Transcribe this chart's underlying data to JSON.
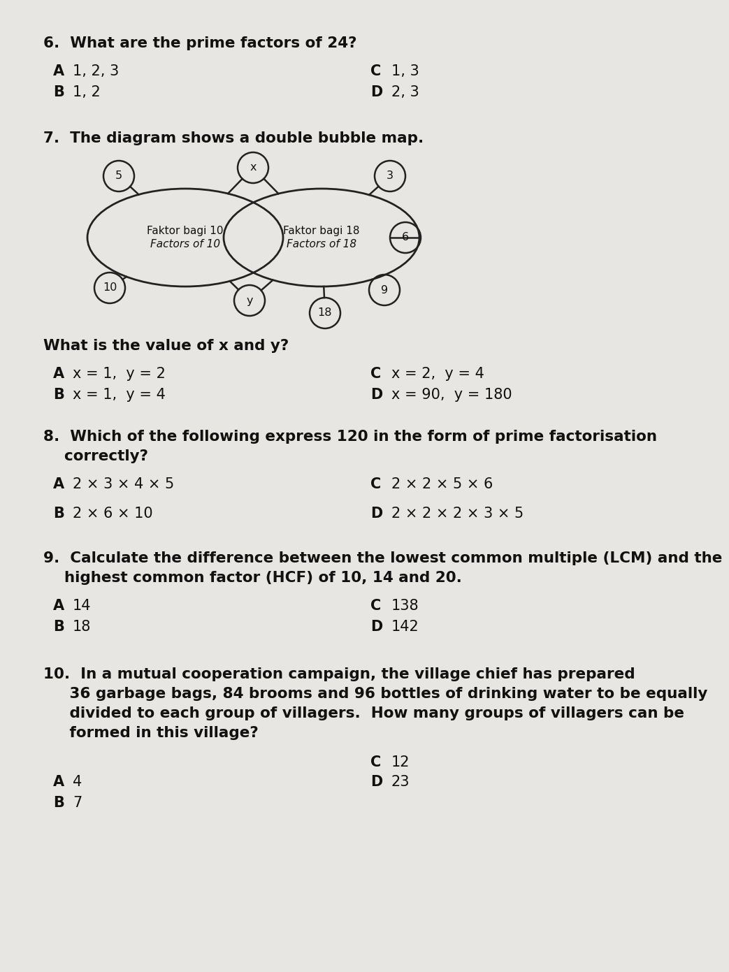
{
  "bg_color": "#e8e6e2",
  "text_color": "#111111",
  "q6": {
    "question": "6.  What are the prime factors of 24?",
    "options": [
      [
        "A",
        "1, 2, 3",
        "C",
        "1, 3"
      ],
      [
        "B",
        "1, 2",
        "D",
        "2, 3"
      ]
    ]
  },
  "q7": {
    "question": "7.  The diagram shows a double bubble map.",
    "sub_question": "What is the value of x and y?",
    "options": [
      [
        "A",
        "x = 1,  y = 2",
        "C",
        "x = 2,  y = 4"
      ],
      [
        "B",
        "x = 1,  y = 4",
        "D",
        "x = 90,  y = 180"
      ]
    ]
  },
  "q8": {
    "question_line1": "8.  Which of the following express 120 in the form of prime factorisation",
    "question_line2": "    correctly?",
    "options": [
      [
        "A",
        "2 × 3 × 4 × 5",
        "C",
        "2 × 2 × 5 × 6"
      ],
      [
        "B",
        "2 × 6 × 10",
        "D",
        "2 × 2 × 2 × 3 × 5"
      ]
    ]
  },
  "q9": {
    "question_line1": "9.  Calculate the difference between the lowest common multiple (LCM) and the",
    "question_line2": "    highest common factor (HCF) of 10, 14 and 20.",
    "options": [
      [
        "A",
        "14",
        "C",
        "138"
      ],
      [
        "B",
        "18",
        "D",
        "142"
      ]
    ]
  },
  "q10": {
    "question_line1": "10.  In a mutual cooperation campaign, the village chief has prepared",
    "question_line2": "     36 garbage bags, 84 brooms and 96 bottles of drinking water to be equally",
    "question_line3": "     divided to each group of villagers.  How many groups of villagers can be",
    "question_line4": "     formed in this village?"
  }
}
